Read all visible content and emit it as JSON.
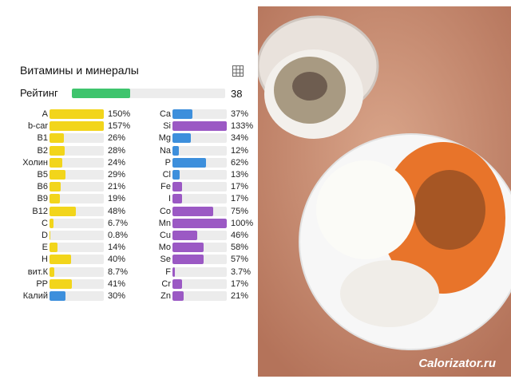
{
  "chart_data": {
    "type": "bar",
    "title": "Витамины и минералы",
    "rating": {
      "label": "Рейтинг",
      "value": 38,
      "color": "#3ec46d"
    },
    "xlim": [
      0,
      100
    ],
    "groups": [
      {
        "categories": [
          "A",
          "b-car",
          "B1",
          "B2",
          "Холин",
          "B5",
          "B6",
          "B9",
          "B12",
          "C",
          "D",
          "E",
          "H",
          "вит.К",
          "PP",
          "Калий"
        ],
        "values": [
          150,
          157,
          26,
          28,
          24,
          29,
          21,
          19,
          48,
          6.7,
          0.8,
          14,
          40,
          8.7,
          41,
          30
        ],
        "value_labels": [
          "150%",
          "157%",
          "26%",
          "28%",
          "24%",
          "29%",
          "21%",
          "19%",
          "48%",
          "6.7%",
          "0.8%",
          "14%",
          "40%",
          "8.7%",
          "41%",
          "30%"
        ],
        "colors": [
          "#f2d51b",
          "#f2d51b",
          "#f2d51b",
          "#f2d51b",
          "#f2d51b",
          "#f2d51b",
          "#f2d51b",
          "#f2d51b",
          "#f2d51b",
          "#f2d51b",
          "#f2d51b",
          "#f2d51b",
          "#f2d51b",
          "#f2d51b",
          "#f2d51b",
          "#3d8fdc"
        ]
      },
      {
        "categories": [
          "Ca",
          "Si",
          "Mg",
          "Na",
          "P",
          "Cl",
          "Fe",
          "I",
          "Co",
          "Mn",
          "Cu",
          "Mo",
          "Se",
          "F",
          "Cr",
          "Zn"
        ],
        "values": [
          37,
          133,
          34,
          12,
          62,
          13,
          17,
          17,
          75,
          100,
          46,
          58,
          57,
          3.7,
          17,
          21
        ],
        "value_labels": [
          "37%",
          "133%",
          "34%",
          "12%",
          "62%",
          "13%",
          "17%",
          "17%",
          "75%",
          "100%",
          "46%",
          "58%",
          "57%",
          "3.7%",
          "17%",
          "21%"
        ],
        "colors": [
          "#3d8fdc",
          "#9b59c4",
          "#3d8fdc",
          "#3d8fdc",
          "#3d8fdc",
          "#3d8fdc",
          "#9b59c4",
          "#9b59c4",
          "#9b59c4",
          "#9b59c4",
          "#9b59c4",
          "#9b59c4",
          "#9b59c4",
          "#9b59c4",
          "#9b59c4",
          "#9b59c4"
        ]
      }
    ]
  },
  "watermark": "Calorizator.ru"
}
